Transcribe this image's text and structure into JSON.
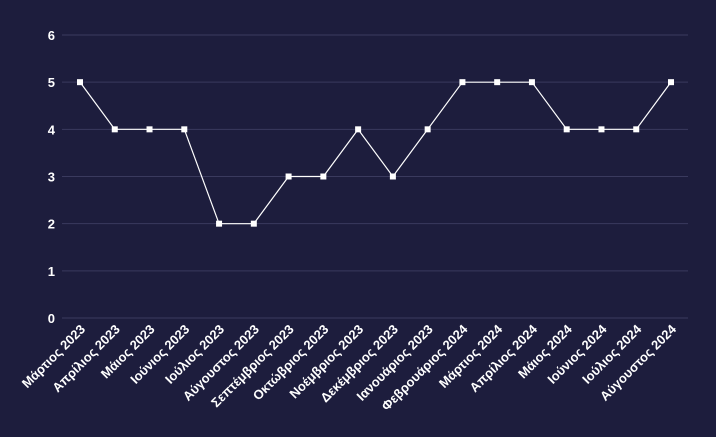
{
  "chart_data": {
    "type": "line",
    "title": "",
    "xlabel": "",
    "ylabel": "",
    "ylim": [
      0,
      6
    ],
    "yticks": [
      0,
      1,
      2,
      3,
      4,
      5,
      6
    ],
    "grid": "horizontal",
    "legend": "none",
    "colors": {
      "background": "#1d1d3d",
      "line": "#ffffff",
      "grid": "#3a3a5e",
      "text": "#ffffff"
    },
    "categories": [
      "Μάρτιος 2023",
      "Απρίλιος 2023",
      "Μάιος 2023",
      "Ιούνιος 2023",
      "Ιούλιος 2023",
      "Αύγουστος 2023",
      "Σεπτέμβριος 2023",
      "Οκτώβριος 2023",
      "Νοέμβριος 2023",
      "Δεκέμβριος 2023",
      "Ιανουάριος 2023",
      "Φεβρουάριος 2024",
      "Μάρτιος 2024",
      "Απρίλιος 2024",
      "Μάιος 2024",
      "Ιούνιος 2024",
      "Ιούλιος 2024",
      "Αύγουστος 2024"
    ],
    "series": [
      {
        "values": [
          5,
          4,
          4,
          4,
          2,
          2,
          3,
          3,
          4,
          3,
          4,
          5,
          5,
          5,
          4,
          4,
          4,
          5
        ]
      }
    ]
  }
}
